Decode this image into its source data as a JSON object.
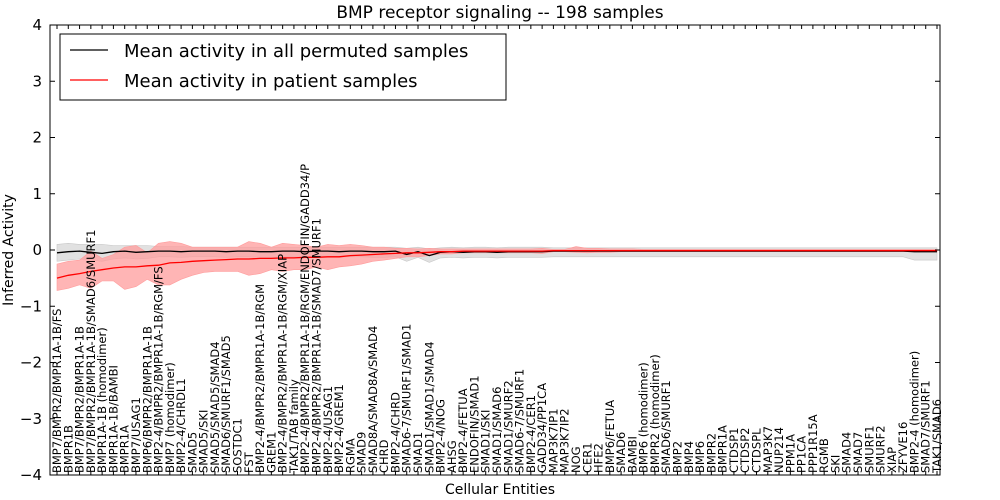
{
  "chart_data": {
    "type": "line",
    "title": "BMP receptor signaling -- 198 samples",
    "xlabel": "Cellular Entities",
    "ylabel": "Inferred Activity",
    "ylim": [
      -4,
      4
    ],
    "yticks": [
      "4",
      "3",
      "2",
      "1",
      "0",
      "−1",
      "−2",
      "−3",
      "−4"
    ],
    "grid": false,
    "legend_position": "top-left",
    "colors": {
      "permuted": "#000000",
      "patient": "#ff0000",
      "permuted_band": "#c8c8c8",
      "patient_band": "#ff9c9c"
    },
    "categories": [
      "BMP7/BMPR2/BMPR1A-1B/FS",
      "BMPR1B",
      "BMP7/BMPR2/BMPR1A-1B",
      "BMP7/BMPR2/BMPR1A-1B/SMAD6/SMURF1",
      "BMPR1A-1B (homodimer)",
      "BMPR1A-1B/BAMBI",
      "BMPR1A",
      "BMP7/USAG1",
      "BMP6/BMPR2/BMPR1A-1B",
      "BMP2-4/BMPR2/BMPR1A-1B/RGM/FS",
      "BMP7 (homodimer)",
      "BMP2-4/CHRDL1",
      "SMAD5",
      "SMAD5/SKI",
      "SMAD5/SMAD5/SMAD4",
      "SMAD6/SMURF1/SMAD5",
      "SOSTDC1",
      "FST",
      "BMP2-4/BMPR2/BMPR1A-1B/RGM",
      "GREM1",
      "BMP2-4/BMPR2/BMPR1A-1B/RGM/XIAP",
      "TAK1/TAB family",
      "BMP2-4/BMPR2/BMPR1A-1B/RGM/ENDOFIN/GADD34/P",
      "BMP2-4/BMPR2/BMPR1A-1B/SMAD7/SMURF1",
      "BMP2-4/USAG1",
      "BMP2-4/GREM1",
      "RGMA",
      "SMAD9",
      "SMAD8A/SMAD8A/SMAD4",
      "CHRD",
      "BMP2-4/CHRD",
      "SMAD6-7/SMURF1/SMAD1",
      "SMAD1",
      "SMAD1/SMAD1/SMAD4",
      "BMP2-4/NOG",
      "AHSG",
      "BMP2-4/FETUA",
      "ENDOFIN/SMAD1",
      "SMAD1/SKI",
      "SMAD1/SMAD6",
      "SMAD1/SMURF2",
      "SMAD6-7/SMURF1",
      "BMP2-4/CER1",
      "GADD34/PP1CA",
      "MAP3K7IP1",
      "MAP3K7IP2",
      "NOG",
      "CER1",
      "HFE2",
      "BMP6/FETUA",
      "SMAD6",
      "BAMBI",
      "BMP6 (homodimer)",
      "BMPR2 (homodimer)",
      "SMAD6/SMURF1",
      "BMP2",
      "BMP4",
      "BMP6",
      "BMPR2",
      "BMPR1A",
      "CTDSP1",
      "CTDSP2",
      "CTDSPL",
      "MAP3K7",
      "NUP214",
      "PPM1A",
      "PP1CA",
      "PPP1R15A",
      "RGMB",
      "SKI",
      "SMAD4",
      "SMAD7",
      "SMURF1",
      "SMURF2",
      "XIAP",
      "ZFYVE16",
      "BMP2-4 (homodimer)",
      "SMAD7/SMURF1",
      "TAK1/SMAD6"
    ],
    "series": [
      {
        "name": "Mean activity in all permuted samples",
        "values": [
          -0.05,
          -0.03,
          -0.02,
          -0.04,
          -0.06,
          -0.03,
          -0.02,
          -0.04,
          -0.03,
          -0.02,
          -0.02,
          -0.03,
          -0.02,
          -0.02,
          -0.02,
          -0.03,
          -0.02,
          -0.02,
          -0.03,
          -0.03,
          -0.02,
          -0.02,
          -0.03,
          -0.02,
          -0.02,
          -0.03,
          -0.02,
          -0.02,
          -0.03,
          -0.03,
          -0.02,
          -0.08,
          -0.03,
          -0.1,
          -0.04,
          -0.03,
          -0.04,
          -0.03,
          -0.03,
          -0.04,
          -0.03,
          -0.03,
          -0.03,
          -0.03,
          -0.02,
          -0.02,
          -0.02,
          -0.02,
          -0.02,
          -0.02,
          -0.02,
          -0.02,
          -0.02,
          -0.02,
          -0.02,
          -0.02,
          -0.02,
          -0.02,
          -0.02,
          -0.02,
          -0.02,
          -0.02,
          -0.02,
          -0.02,
          -0.02,
          -0.02,
          -0.02,
          -0.02,
          -0.02,
          -0.02,
          -0.02,
          -0.02,
          -0.02,
          -0.02,
          -0.02,
          -0.02,
          -0.03,
          -0.03,
          -0.03
        ],
        "upper": [
          0.1,
          0.12,
          0.1,
          0.1,
          0.1,
          0.08,
          0.08,
          0.08,
          0.08,
          0.06,
          0.06,
          0.06,
          0.05,
          0.05,
          0.05,
          0.05,
          0.05,
          0.05,
          0.05,
          0.05,
          0.05,
          0.05,
          0.05,
          0.05,
          0.05,
          0.05,
          0.05,
          0.05,
          0.05,
          0.05,
          0.05,
          0.03,
          0.05,
          0.02,
          0.04,
          0.05,
          0.04,
          0.05,
          0.05,
          0.04,
          0.05,
          0.05,
          0.05,
          0.05,
          0.04,
          0.04,
          0.04,
          0.04,
          0.04,
          0.04,
          0.04,
          0.04,
          0.04,
          0.04,
          0.04,
          0.04,
          0.04,
          0.04,
          0.04,
          0.04,
          0.04,
          0.04,
          0.04,
          0.04,
          0.04,
          0.04,
          0.04,
          0.04,
          0.04,
          0.04,
          0.04,
          0.04,
          0.04,
          0.04,
          0.04,
          0.04,
          0.04,
          0.04,
          0.04
        ],
        "lower": [
          -0.2,
          -0.18,
          -0.16,
          -0.18,
          -0.2,
          -0.16,
          -0.14,
          -0.16,
          -0.15,
          -0.12,
          -0.12,
          -0.13,
          -0.12,
          -0.12,
          -0.12,
          -0.13,
          -0.12,
          -0.12,
          -0.13,
          -0.13,
          -0.12,
          -0.12,
          -0.13,
          -0.12,
          -0.12,
          -0.13,
          -0.12,
          -0.12,
          -0.13,
          -0.13,
          -0.12,
          -0.2,
          -0.13,
          -0.22,
          -0.14,
          -0.13,
          -0.14,
          -0.13,
          -0.13,
          -0.14,
          -0.13,
          -0.13,
          -0.13,
          -0.13,
          -0.12,
          -0.12,
          -0.12,
          -0.12,
          -0.12,
          -0.12,
          -0.12,
          -0.12,
          -0.12,
          -0.12,
          -0.12,
          -0.12,
          -0.12,
          -0.12,
          -0.12,
          -0.12,
          -0.12,
          -0.12,
          -0.12,
          -0.12,
          -0.12,
          -0.12,
          -0.12,
          -0.12,
          -0.12,
          -0.12,
          -0.12,
          -0.12,
          -0.12,
          -0.12,
          -0.12,
          -0.12,
          -0.18,
          -0.18,
          -0.18
        ]
      },
      {
        "name": "Mean activity in patient samples",
        "values": [
          -0.5,
          -0.45,
          -0.42,
          -0.38,
          -0.35,
          -0.32,
          -0.3,
          -0.3,
          -0.28,
          -0.27,
          -0.23,
          -0.22,
          -0.2,
          -0.19,
          -0.18,
          -0.17,
          -0.16,
          -0.16,
          -0.15,
          -0.15,
          -0.14,
          -0.14,
          -0.13,
          -0.13,
          -0.12,
          -0.12,
          -0.1,
          -0.09,
          -0.08,
          -0.07,
          -0.06,
          -0.05,
          -0.05,
          -0.04,
          -0.03,
          -0.03,
          -0.02,
          -0.02,
          -0.02,
          -0.02,
          -0.02,
          -0.02,
          -0.02,
          -0.02,
          -0.01,
          -0.01,
          -0.01,
          -0.01,
          -0.01,
          -0.01,
          -0.01,
          -0.01,
          -0.01,
          -0.01,
          -0.01,
          -0.01,
          -0.01,
          -0.01,
          -0.01,
          -0.01,
          -0.01,
          -0.01,
          -0.01,
          -0.01,
          -0.01,
          -0.01,
          -0.01,
          -0.01,
          -0.01,
          -0.01,
          -0.01,
          -0.01,
          -0.01,
          -0.01,
          -0.01,
          -0.01,
          -0.01,
          -0.01,
          -0.01
        ],
        "upper": [
          -0.25,
          -0.2,
          -0.18,
          -0.02,
          -0.15,
          -0.08,
          0.05,
          0.08,
          -0.05,
          0.12,
          0.15,
          0.12,
          0.05,
          0.05,
          0.05,
          0.05,
          0.05,
          0.15,
          0.12,
          0.05,
          0.12,
          0.1,
          0.08,
          0.05,
          0.1,
          0.08,
          0.1,
          0.08,
          0.05,
          0.05,
          0.03,
          0.03,
          0.02,
          0.03,
          0.02,
          0.02,
          0.02,
          0.02,
          0.02,
          0.02,
          0.02,
          0.02,
          0.02,
          0.03,
          0.01,
          0.01,
          0.06,
          0.03,
          0.03,
          0.02,
          0.02,
          0.02,
          0.01,
          0.01,
          0.01,
          0.01,
          0.01,
          0.01,
          0.01,
          0.01,
          0.01,
          0.01,
          0.01,
          0.01,
          0.01,
          0.01,
          0.01,
          0.01,
          0.01,
          0.01,
          0.01,
          0.01,
          0.01,
          0.01,
          0.01,
          0.01,
          0.01,
          0.01,
          0.01
        ],
        "lower": [
          -0.72,
          -0.68,
          -0.62,
          -0.68,
          -0.55,
          -0.55,
          -0.7,
          -0.65,
          -0.52,
          -0.62,
          -0.62,
          -0.52,
          -0.45,
          -0.4,
          -0.38,
          -0.38,
          -0.38,
          -0.45,
          -0.42,
          -0.35,
          -0.38,
          -0.35,
          -0.35,
          -0.3,
          -0.35,
          -0.3,
          -0.28,
          -0.25,
          -0.2,
          -0.18,
          -0.15,
          -0.12,
          -0.12,
          -0.1,
          -0.07,
          -0.07,
          -0.05,
          -0.05,
          -0.05,
          -0.05,
          -0.05,
          -0.05,
          -0.05,
          -0.06,
          -0.03,
          -0.03,
          -0.04,
          -0.05,
          -0.04,
          -0.04,
          -0.03,
          -0.03,
          -0.03,
          -0.03,
          -0.03,
          -0.03,
          -0.03,
          -0.03,
          -0.03,
          -0.03,
          -0.03,
          -0.03,
          -0.03,
          -0.03,
          -0.03,
          -0.03,
          -0.03,
          -0.03,
          -0.03,
          -0.03,
          -0.03,
          -0.03,
          -0.03,
          -0.03,
          -0.03,
          -0.03,
          -0.03,
          -0.03,
          -0.03
        ]
      }
    ]
  }
}
